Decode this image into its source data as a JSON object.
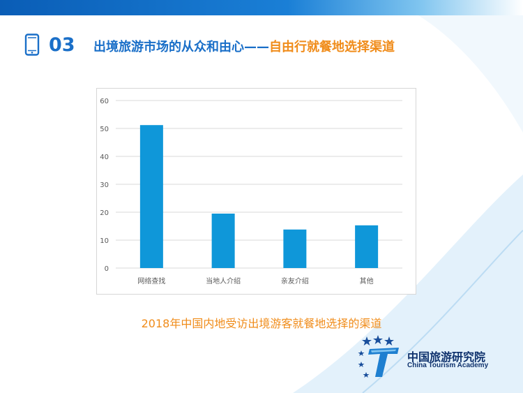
{
  "header": {
    "section_number": "03",
    "title_part1": "出境旅游市场的从众和由心——",
    "title_part2": "自由行就餐地选择渠道"
  },
  "chart_data": {
    "type": "bar",
    "categories": [
      "网络查找",
      "当地人介绍",
      "亲友介绍",
      "其他"
    ],
    "values": [
      51.2,
      19.5,
      13.8,
      15.3
    ],
    "ylim": [
      0,
      60
    ],
    "yticks": [
      "0",
      "10",
      "20",
      "30",
      "40",
      "50",
      "60"
    ],
    "grid": true,
    "bar_color": "#0f97d9"
  },
  "caption": "2018年中国内地受访出境游客就餐地选择的渠道",
  "logo": {
    "name_cn": "中国旅游研究院",
    "name_en": "China Tourism Academy"
  },
  "colors": {
    "accent_blue": "#1a6fc8",
    "accent_orange": "#f08c1a",
    "logo_navy": "#10336e"
  }
}
